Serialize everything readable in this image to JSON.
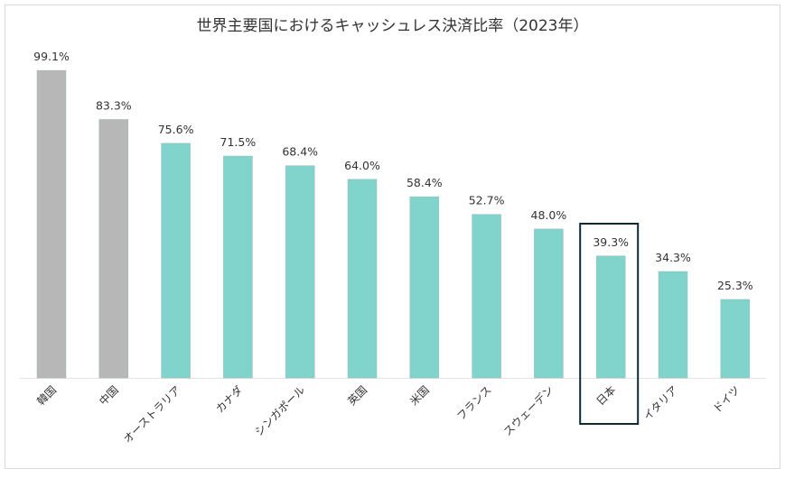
{
  "chart_data": {
    "type": "bar",
    "title": "世界主要国におけるキャッシュレス決済比率（2023年）",
    "categories": [
      "韓国",
      "中国",
      "オーストラリア",
      "カナダ",
      "シンガポール",
      "英国",
      "米国",
      "フランス",
      "スウェーデン",
      "日本",
      "イタリア",
      "ドイツ"
    ],
    "values": [
      99.1,
      83.3,
      75.6,
      71.5,
      68.4,
      64.0,
      58.4,
      52.7,
      48.0,
      39.3,
      34.3,
      25.3
    ],
    "value_labels": [
      "99.1%",
      "83.3%",
      "75.6%",
      "71.5%",
      "68.4%",
      "64.0%",
      "58.4%",
      "52.7%",
      "48.0%",
      "39.3%",
      "34.3%",
      "25.3%"
    ],
    "bar_colors": [
      "#b7b7b7",
      "#b7b7b7",
      "#80d4cc",
      "#80d4cc",
      "#80d4cc",
      "#80d4cc",
      "#80d4cc",
      "#80d4cc",
      "#80d4cc",
      "#80d4cc",
      "#80d4cc",
      "#80d4cc"
    ],
    "highlight_category": "日本",
    "highlight_color": "#0e2a33",
    "xlabel": "",
    "ylabel": "",
    "ylim": [
      0,
      100
    ],
    "grid": false,
    "legend": "none"
  }
}
